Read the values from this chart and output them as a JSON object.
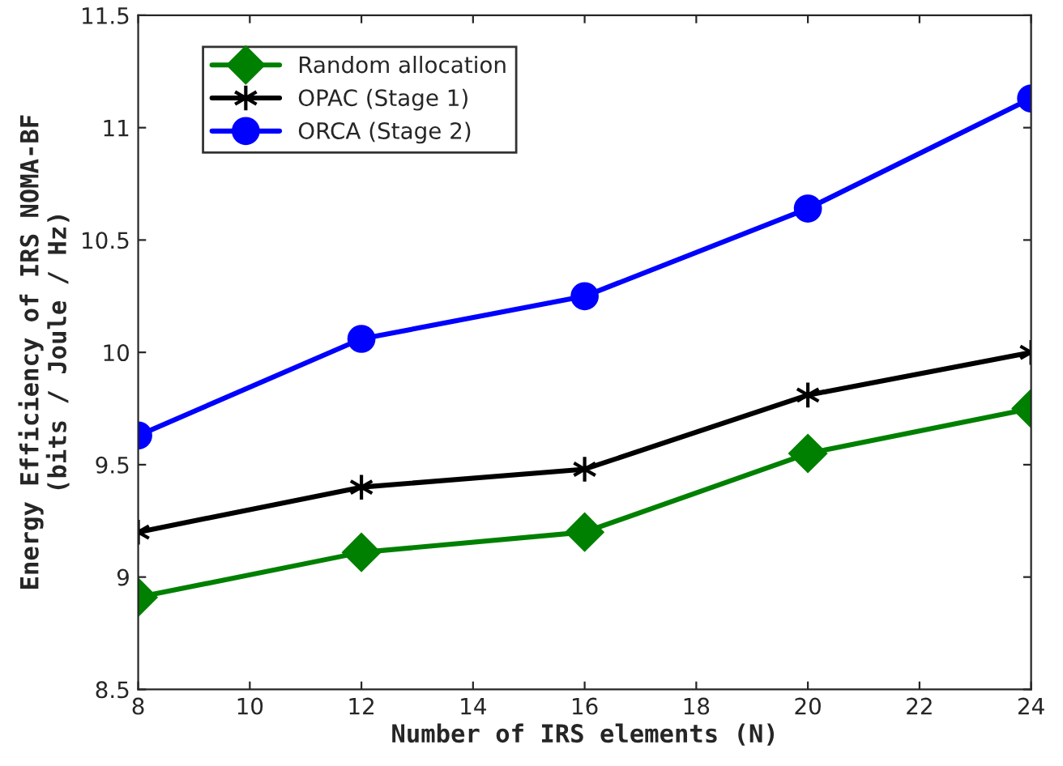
{
  "chart_data": {
    "type": "line",
    "xlabel": "Number of IRS elements (N)",
    "ylabel": "Energy Efficiency of IRS NOMA-BF\n(bits / Joule / Hz)",
    "x": [
      8,
      12,
      16,
      20,
      24
    ],
    "series": [
      {
        "name": "Random allocation",
        "color": "#008000",
        "marker": "diamond",
        "values": [
          8.91,
          9.11,
          9.2,
          9.55,
          9.75
        ]
      },
      {
        "name": "OPAC (Stage 1)",
        "color": "#000000",
        "marker": "cross",
        "values": [
          9.2,
          9.4,
          9.48,
          9.81,
          10.0
        ]
      },
      {
        "name": "ORCA (Stage 2)",
        "color": "#0000ff",
        "marker": "circle",
        "values": [
          9.63,
          10.06,
          10.25,
          10.64,
          11.13
        ]
      }
    ],
    "xlim": [
      8,
      24
    ],
    "xticks": [
      8,
      10,
      12,
      14,
      16,
      18,
      20,
      22,
      24
    ],
    "ylim": [
      8.5,
      11.5
    ],
    "yticks": [
      8.5,
      9,
      9.5,
      10,
      10.5,
      11,
      11.5
    ],
    "grid": false,
    "legend": "top left",
    "line_style": "solid"
  }
}
